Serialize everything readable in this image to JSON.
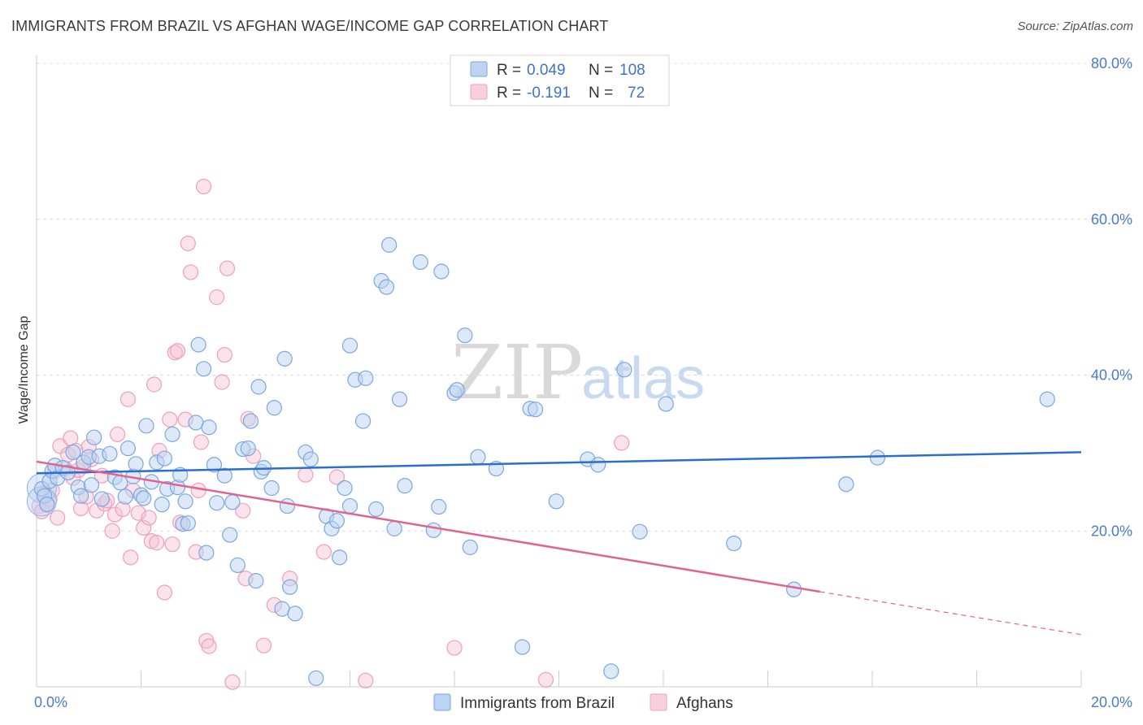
{
  "title": "IMMIGRANTS FROM BRAZIL VS AFGHAN WAGE/INCOME GAP CORRELATION CHART",
  "source": "Source: ZipAtlas.com",
  "watermark": {
    "zip": "ZIP",
    "atlas": "atlas"
  },
  "legend_top": {
    "rows": [
      {
        "r_label": "R =",
        "r_value": "0.049",
        "n_label": "N =",
        "n_value": "108"
      },
      {
        "r_label": "R =",
        "r_value": "-0.191",
        "n_label": "N =",
        "n_value": "72"
      }
    ]
  },
  "chart_data": {
    "type": "scatter",
    "title": "IMMIGRANTS FROM BRAZIL VS AFGHAN WAGE/INCOME GAP CORRELATION CHART",
    "xlabel": "",
    "ylabel": "Wage/Income Gap",
    "xlim": [
      0,
      20
    ],
    "ylim": [
      0,
      80
    ],
    "x_tick_labels": [
      "0.0%",
      "20.0%"
    ],
    "y_tick_labels": [
      "20.0%",
      "40.0%",
      "60.0%",
      "80.0%"
    ],
    "y_ticks": [
      20,
      40,
      60,
      80
    ],
    "grid": true,
    "legend_position": "bottom",
    "colors": {
      "brazil": "#7aa7e0",
      "afghans": "#f0a0bc",
      "brazil_line": "#2a6ecf",
      "afghans_line": "#e0648f"
    },
    "series": [
      {
        "name": "Immigrants from Brazil",
        "r": 0.049,
        "n": 108,
        "trend": {
          "x0": 0,
          "y0": 27.4,
          "x1": 20,
          "y1": 30.1
        },
        "points": [
          [
            0.1,
            25.4
          ],
          [
            0.15,
            24.5
          ],
          [
            0.2,
            23.4
          ],
          [
            0.25,
            26.4
          ],
          [
            0.3,
            27.7
          ],
          [
            0.35,
            28.4
          ],
          [
            0.4,
            26.8
          ],
          [
            0.5,
            28.1
          ],
          [
            0.6,
            27.5
          ],
          [
            0.7,
            30.1
          ],
          [
            0.8,
            25.6
          ],
          [
            0.85,
            24.5
          ],
          [
            0.9,
            28.8
          ],
          [
            1.0,
            29.5
          ],
          [
            1.05,
            25.9
          ],
          [
            1.1,
            32.0
          ],
          [
            1.2,
            29.6
          ],
          [
            1.25,
            24.1
          ],
          [
            1.4,
            29.9
          ],
          [
            1.5,
            26.9
          ],
          [
            1.6,
            26.2
          ],
          [
            1.7,
            24.4
          ],
          [
            1.75,
            30.6
          ],
          [
            1.85,
            27.0
          ],
          [
            1.9,
            28.6
          ],
          [
            2.0,
            24.6
          ],
          [
            2.05,
            24.2
          ],
          [
            2.1,
            33.5
          ],
          [
            2.2,
            26.3
          ],
          [
            2.3,
            28.8
          ],
          [
            2.4,
            23.4
          ],
          [
            2.45,
            29.3
          ],
          [
            2.5,
            25.4
          ],
          [
            2.6,
            32.4
          ],
          [
            2.7,
            25.6
          ],
          [
            2.75,
            27.2
          ],
          [
            2.8,
            20.9
          ],
          [
            2.85,
            23.8
          ],
          [
            2.9,
            21.0
          ],
          [
            3.05,
            33.9
          ],
          [
            3.1,
            43.9
          ],
          [
            3.2,
            40.8
          ],
          [
            3.25,
            17.2
          ],
          [
            3.3,
            33.3
          ],
          [
            3.4,
            28.5
          ],
          [
            3.45,
            23.6
          ],
          [
            3.6,
            27.1
          ],
          [
            3.7,
            19.5
          ],
          [
            3.75,
            23.7
          ],
          [
            3.85,
            15.6
          ],
          [
            3.95,
            30.5
          ],
          [
            4.05,
            30.6
          ],
          [
            4.1,
            34.1
          ],
          [
            4.2,
            13.6
          ],
          [
            4.25,
            38.5
          ],
          [
            4.3,
            27.6
          ],
          [
            4.35,
            28.1
          ],
          [
            4.5,
            25.5
          ],
          [
            4.55,
            35.8
          ],
          [
            4.7,
            10.0
          ],
          [
            4.75,
            42.1
          ],
          [
            4.8,
            23.2
          ],
          [
            4.85,
            12.8
          ],
          [
            4.95,
            9.4
          ],
          [
            5.15,
            30.1
          ],
          [
            5.25,
            29.2
          ],
          [
            5.35,
            1.1
          ],
          [
            5.55,
            21.9
          ],
          [
            5.65,
            20.3
          ],
          [
            5.75,
            21.3
          ],
          [
            5.8,
            16.6
          ],
          [
            5.9,
            25.5
          ],
          [
            6.0,
            23.2
          ],
          [
            6.0,
            43.8
          ],
          [
            6.1,
            39.4
          ],
          [
            6.25,
            34.1
          ],
          [
            6.3,
            39.6
          ],
          [
            6.5,
            22.8
          ],
          [
            6.6,
            52.1
          ],
          [
            6.7,
            51.3
          ],
          [
            6.75,
            56.7
          ],
          [
            6.85,
            20.3
          ],
          [
            6.95,
            36.9
          ],
          [
            7.05,
            25.8
          ],
          [
            7.35,
            54.5
          ],
          [
            7.6,
            20.1
          ],
          [
            7.7,
            23.1
          ],
          [
            7.75,
            53.3
          ],
          [
            8.0,
            37.7
          ],
          [
            8.05,
            38.1
          ],
          [
            8.2,
            45.1
          ],
          [
            8.3,
            17.9
          ],
          [
            8.45,
            29.5
          ],
          [
            8.8,
            28.0
          ],
          [
            9.3,
            5.1
          ],
          [
            9.45,
            35.7
          ],
          [
            9.55,
            35.6
          ],
          [
            9.95,
            23.8
          ],
          [
            10.55,
            29.2
          ],
          [
            10.75,
            28.5
          ],
          [
            11.0,
            2.0
          ],
          [
            11.25,
            40.7
          ],
          [
            11.55,
            19.9
          ],
          [
            12.05,
            36.3
          ],
          [
            13.35,
            18.4
          ],
          [
            14.5,
            12.5
          ],
          [
            15.5,
            26.0
          ],
          [
            16.1,
            29.4
          ],
          [
            19.35,
            36.9
          ]
        ]
      },
      {
        "name": "Afghans",
        "r": -0.191,
        "n": 72,
        "trend": {
          "x0": 0,
          "y0": 28.9,
          "x1": 15.0,
          "y1": 12.2,
          "dash_to": {
            "x": 20,
            "y": 6.7
          }
        },
        "points": [
          [
            0.05,
            23.2
          ],
          [
            0.1,
            22.5
          ],
          [
            0.15,
            24.9
          ],
          [
            0.2,
            23.5
          ],
          [
            0.3,
            25.2
          ],
          [
            0.35,
            27.7
          ],
          [
            0.4,
            21.7
          ],
          [
            0.45,
            30.9
          ],
          [
            0.55,
            28.0
          ],
          [
            0.6,
            29.8
          ],
          [
            0.65,
            31.9
          ],
          [
            0.7,
            26.8
          ],
          [
            0.75,
            30.3
          ],
          [
            0.8,
            27.8
          ],
          [
            0.85,
            22.9
          ],
          [
            0.9,
            28.3
          ],
          [
            0.95,
            24.4
          ],
          [
            1.0,
            30.8
          ],
          [
            1.05,
            29.2
          ],
          [
            1.15,
            22.6
          ],
          [
            1.25,
            27.1
          ],
          [
            1.3,
            23.5
          ],
          [
            1.35,
            23.9
          ],
          [
            1.45,
            20.0
          ],
          [
            1.5,
            22.1
          ],
          [
            1.55,
            32.4
          ],
          [
            1.65,
            22.8
          ],
          [
            1.75,
            36.9
          ],
          [
            1.8,
            16.6
          ],
          [
            1.85,
            25.2
          ],
          [
            1.95,
            22.3
          ],
          [
            2.05,
            20.4
          ],
          [
            2.15,
            21.7
          ],
          [
            2.2,
            18.7
          ],
          [
            2.25,
            38.8
          ],
          [
            2.3,
            18.5
          ],
          [
            2.35,
            30.3
          ],
          [
            2.45,
            12.1
          ],
          [
            2.55,
            34.3
          ],
          [
            2.6,
            18.3
          ],
          [
            2.65,
            42.9
          ],
          [
            2.7,
            43.1
          ],
          [
            2.75,
            21.1
          ],
          [
            2.85,
            34.3
          ],
          [
            2.9,
            56.9
          ],
          [
            2.95,
            53.2
          ],
          [
            3.05,
            17.3
          ],
          [
            3.1,
            25.2
          ],
          [
            3.15,
            31.4
          ],
          [
            3.2,
            64.2
          ],
          [
            3.25,
            5.9
          ],
          [
            3.3,
            5.2
          ],
          [
            3.45,
            50.0
          ],
          [
            3.55,
            39.1
          ],
          [
            3.6,
            42.6
          ],
          [
            3.65,
            53.7
          ],
          [
            3.75,
            0.6
          ],
          [
            3.95,
            22.6
          ],
          [
            4.0,
            13.9
          ],
          [
            4.05,
            34.4
          ],
          [
            4.15,
            29.6
          ],
          [
            4.35,
            5.3
          ],
          [
            4.55,
            10.5
          ],
          [
            4.85,
            13.9
          ],
          [
            5.15,
            27.2
          ],
          [
            5.5,
            17.3
          ],
          [
            5.75,
            26.9
          ],
          [
            6.3,
            0.8
          ],
          [
            8.0,
            5.0
          ],
          [
            9.75,
            0.9
          ],
          [
            11.2,
            31.3
          ],
          [
            0.25,
            24.1
          ]
        ]
      }
    ]
  },
  "bottom_legend": {
    "brazil_label": "Immigrants from Brazil",
    "afghans_label": "Afghans"
  },
  "big_circles": [
    [
      0.1,
      25.5
    ],
    [
      0.1,
      23.8
    ]
  ]
}
